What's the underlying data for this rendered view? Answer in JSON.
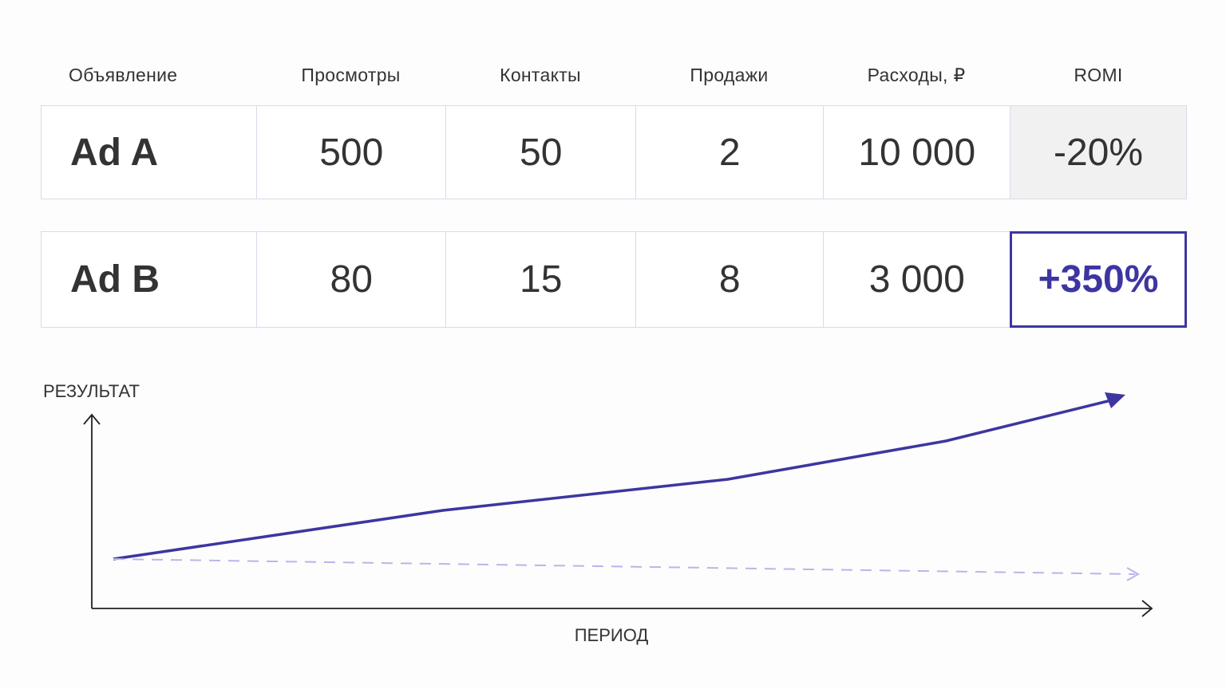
{
  "table": {
    "headers": [
      "Объявление",
      "Просмотры",
      "Контакты",
      "Продажи",
      "Расходы, ₽",
      "ROMI"
    ],
    "rows": [
      [
        "Ad A",
        "500",
        "50",
        "2",
        "10 000",
        "-20%"
      ],
      [
        "Ad B",
        "80",
        "15",
        "8",
        "3 000",
        "+350%"
      ]
    ]
  },
  "diagram": {
    "y_label": "РЕЗУЛЬТАТ",
    "x_label": "ПЕРИОД"
  }
}
